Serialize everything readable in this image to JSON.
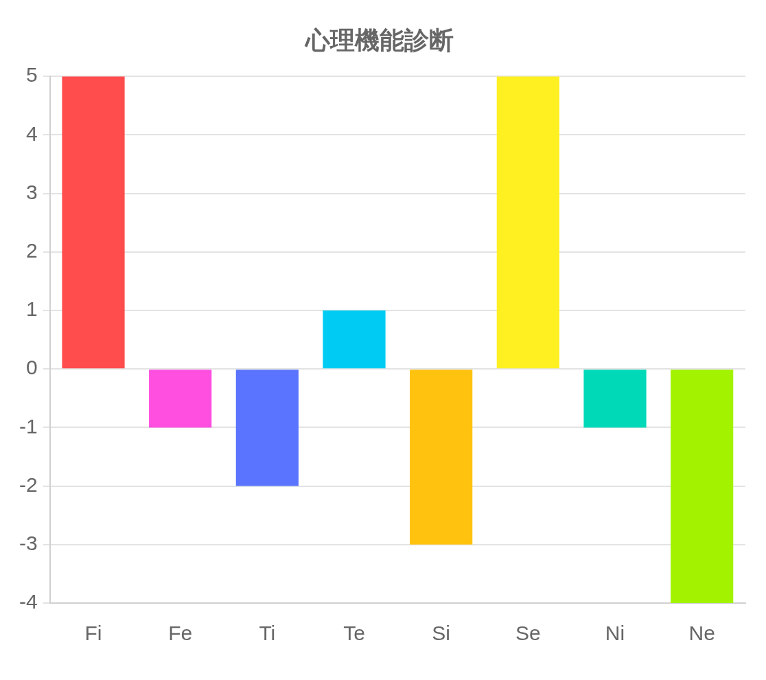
{
  "chart_data": {
    "type": "bar",
    "title": "心理機能診断",
    "categories": [
      "Fi",
      "Fe",
      "Ti",
      "Te",
      "Si",
      "Se",
      "Ni",
      "Ne"
    ],
    "values": [
      5,
      -1,
      -2,
      1,
      -3,
      5,
      -1,
      -4
    ],
    "colors": [
      "#ff4d4d",
      "#ff4fe0",
      "#5a74ff",
      "#00cbf2",
      "#ffc20e",
      "#fff022",
      "#00d9b8",
      "#a3f200"
    ],
    "ylim": [
      -4,
      5
    ],
    "yticks": [
      -4,
      -3,
      -2,
      -1,
      0,
      1,
      2,
      3,
      4,
      5
    ],
    "grid": "y",
    "legend": false
  }
}
